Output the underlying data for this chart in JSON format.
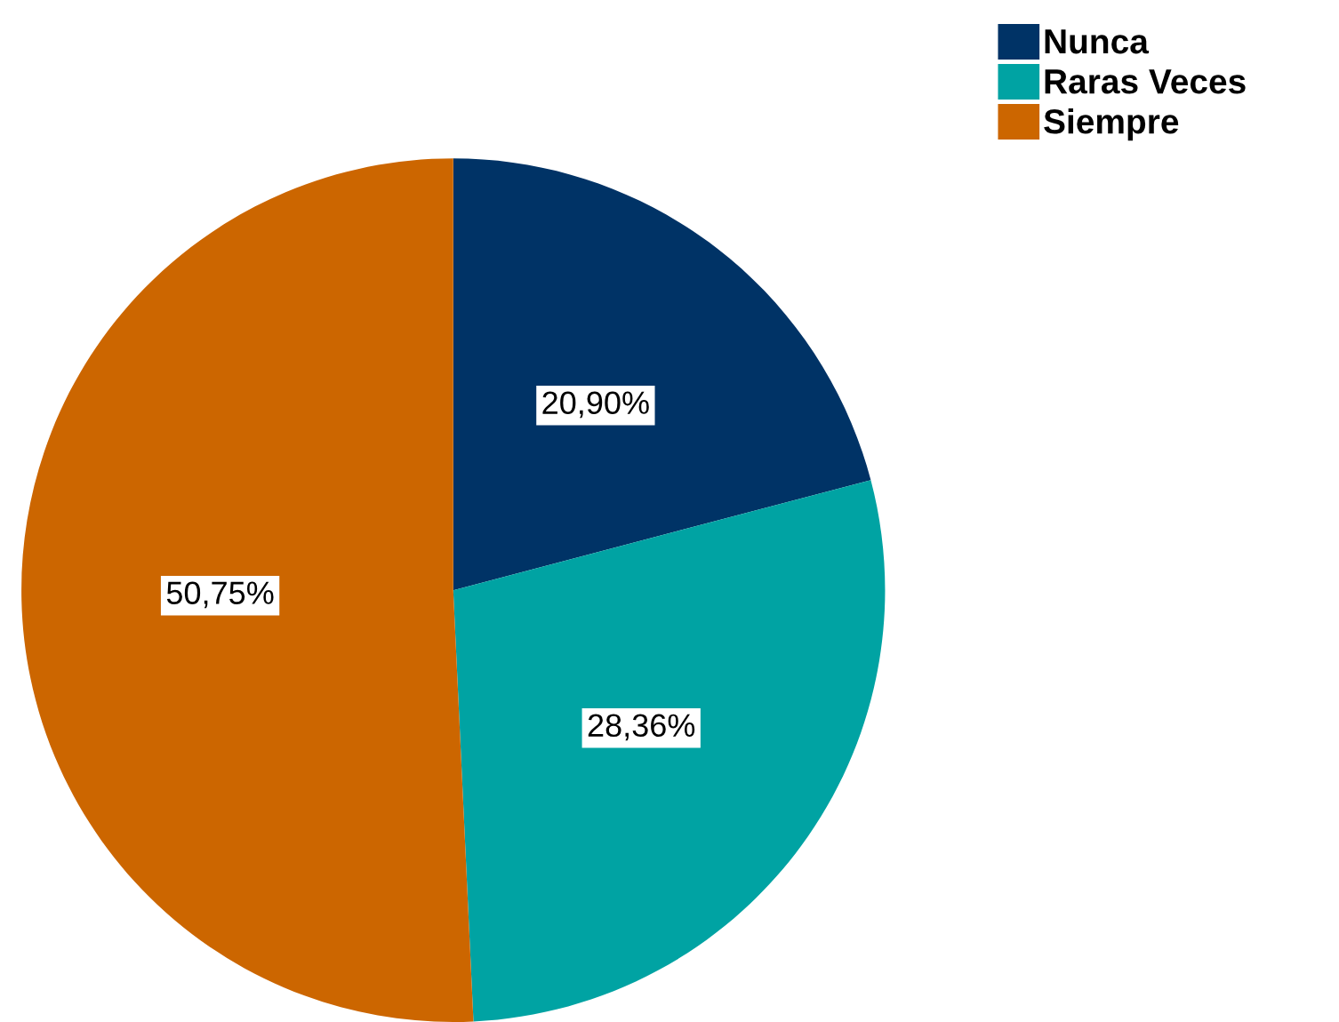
{
  "chart_data": {
    "type": "pie",
    "categories": [
      "Nunca",
      "Raras Veces",
      "Siempre"
    ],
    "values": [
      20.9,
      28.36,
      50.75
    ],
    "colors": [
      "#003366",
      "#00a3a3",
      "#cc6600"
    ],
    "value_labels": [
      "20,90%",
      "28,36%",
      "50,75%"
    ],
    "legend": "top right"
  }
}
